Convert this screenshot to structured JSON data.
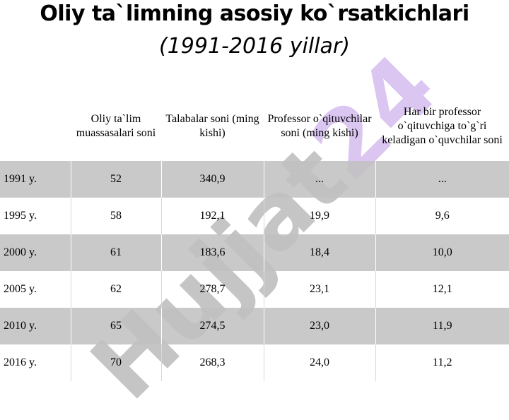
{
  "header": {
    "title": "Oliy ta`limning asosiy ko`rsatkichlari",
    "subtitle": "(1991-2016 yillar)"
  },
  "watermark": {
    "text_part1": "Hujjat",
    "text_part2": "24"
  },
  "table": {
    "headers": [
      "",
      "Oliy ta`lim muassasalari soni",
      "Talabalar soni (ming kishi)",
      "Professor o`qituvchilar soni (ming kishi)",
      "Har bir professor o`qituvchiga to`g`ri keladigan o`quvchilar soni"
    ],
    "rows": [
      [
        "1991 y.",
        "52",
        "340,9",
        "...",
        "..."
      ],
      [
        "1995 y.",
        "58",
        "192,1",
        "19,9",
        "9,6"
      ],
      [
        "2000 y.",
        "61",
        "183,6",
        "18,4",
        "10,0"
      ],
      [
        "2005 y.",
        "62",
        "278,7",
        "23,1",
        "12,1"
      ],
      [
        "2010 y.",
        "65",
        "274,5",
        "23,0",
        "11,9"
      ],
      [
        "2016 y.",
        "70",
        "268,3",
        "24,0",
        "11,2"
      ]
    ]
  },
  "colors": {
    "shaded_row": "#c0c0c0",
    "watermark_gray": "#969696",
    "watermark_purple": "#be96e6"
  }
}
